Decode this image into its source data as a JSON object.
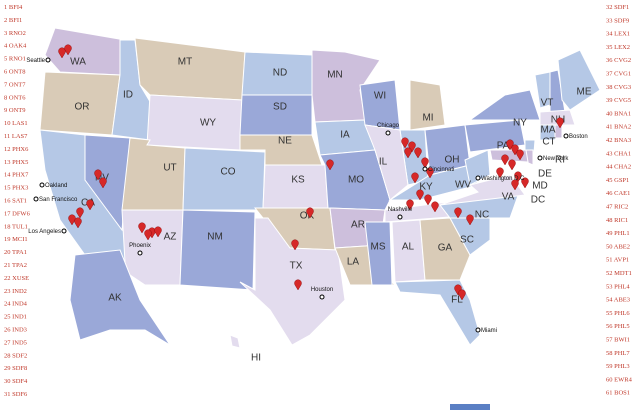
{
  "left_list": [
    "1 BFI4",
    "2 BFI1",
    "3 RNO2",
    "4 OAK4",
    "5 RNO1",
    "6 ONT8",
    "7 ONT7",
    "8 ONT6",
    "9 ONT9",
    "10 LAS1",
    "11 LAS7",
    "12 PHX6",
    "13 PHX5",
    "14 PHX7",
    "15 PHX3",
    "16 SAT1",
    "17 DFW6",
    "18 TUL1",
    "19 MCI1",
    "20 TPA1",
    "21 TPA2",
    "22 XUSE",
    "23 IND2",
    "24 IND4",
    "25 IND1",
    "26 IND3",
    "27 IND5",
    "28 SDF2",
    "29 SDF8",
    "30 SDF4",
    "31 SDF6"
  ],
  "right_list": [
    "32 SDF1",
    "33 SDF9",
    "34 LEX1",
    "35 LEX2",
    "36 CVG2",
    "37 CVG1",
    "38 CVG3",
    "39 CVG5",
    "40 BNA1",
    "41 BNA2",
    "42 BNA3",
    "43 CHA1",
    "44 CHA2",
    "45 GSP1",
    "46 CAE1",
    "47 RIC2",
    "48 RIC1",
    "49 PHL1",
    "50 ABE2",
    "51 AVP1",
    "52 MDT1",
    "53 PHL4",
    "54 ABE3",
    "55 PHL6",
    "56 PHL5",
    "57 BWI1",
    "58 PHL7",
    "59 PHL3",
    "60 EWR4",
    "61 BOS1"
  ],
  "states": [
    "WA",
    "OR",
    "CA",
    "NV",
    "ID",
    "MT",
    "WY",
    "UT",
    "CO",
    "AZ",
    "NM",
    "ND",
    "SD",
    "NE",
    "KS",
    "OK",
    "TX",
    "MN",
    "IA",
    "MO",
    "AR",
    "LA",
    "WI",
    "IL",
    "MI",
    "OH",
    "KY",
    "MS",
    "AL",
    "GA",
    "FL",
    "SC",
    "NC",
    "VA",
    "WV",
    "PA",
    "NY",
    "VT",
    "NH",
    "ME",
    "MA",
    "CT",
    "RI",
    "DE",
    "MD",
    "DC",
    "AK",
    "HI"
  ],
  "cities": [
    "Seattle",
    "Oakland",
    "San Francisco",
    "Los Angeles",
    "Phoenix",
    "Houston",
    "Chicago",
    "Cincinnati",
    "Nashville",
    "Washington D.C",
    "New York",
    "Boston",
    "Miami"
  ]
}
